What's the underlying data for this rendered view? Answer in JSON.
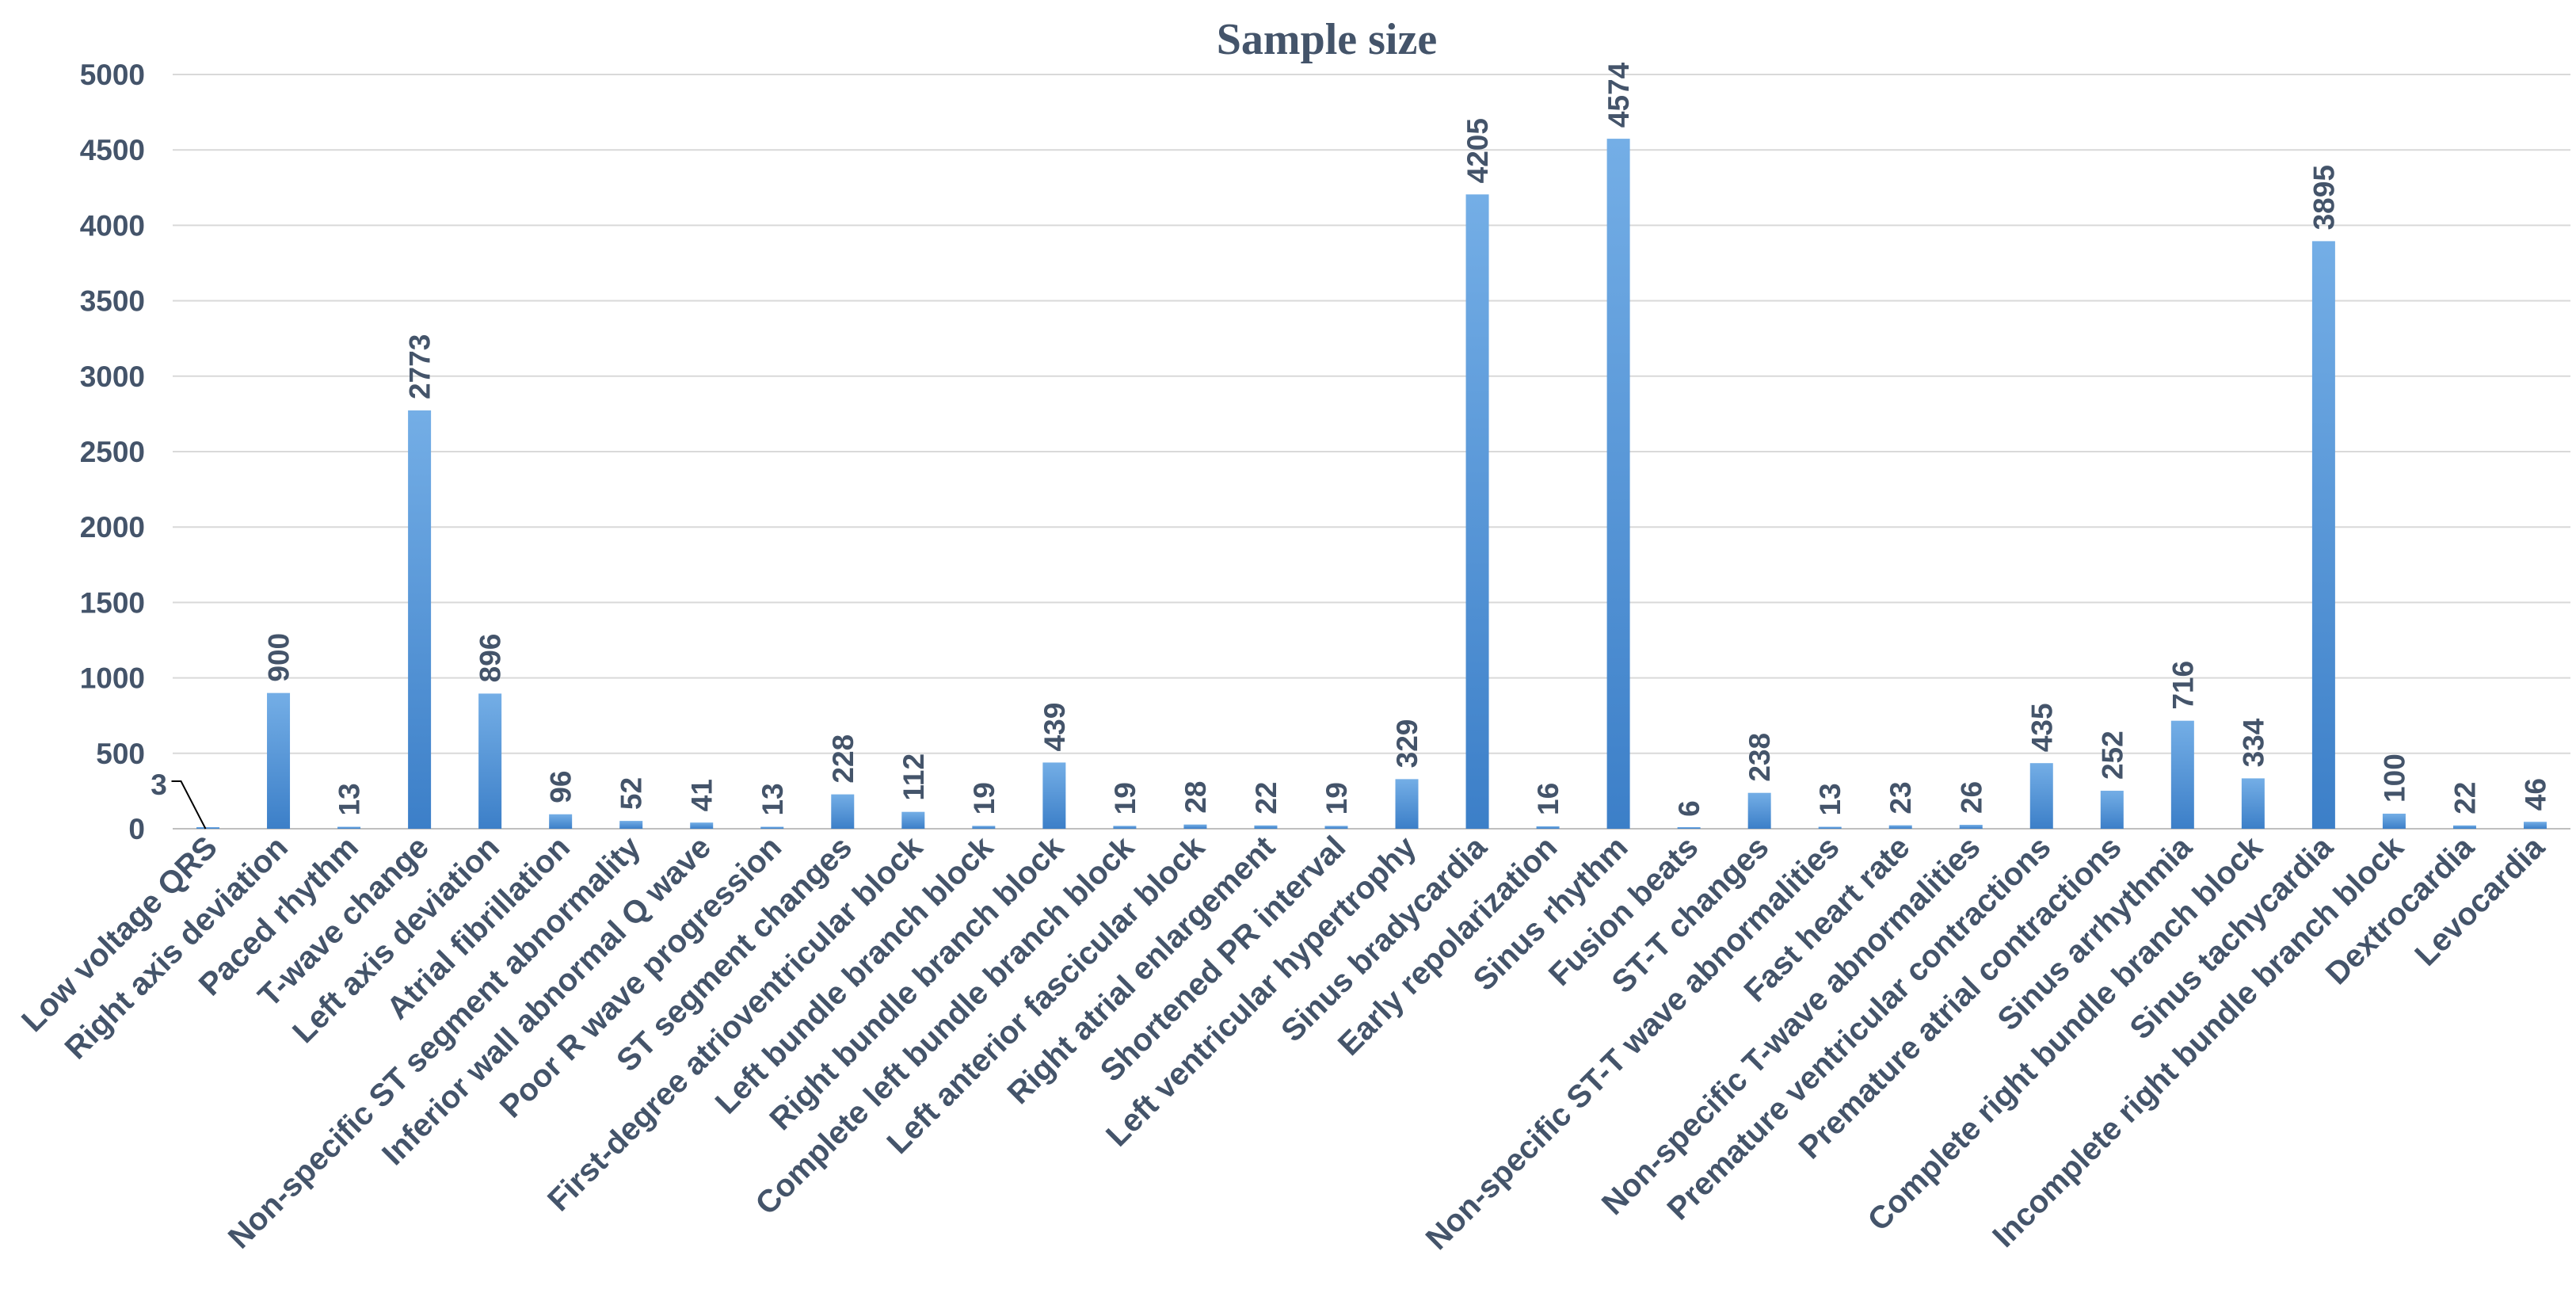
{
  "chart_data": {
    "type": "bar",
    "title": "Sample size",
    "xlabel": "",
    "ylabel": "",
    "ylim": [
      0,
      5000
    ],
    "yticks": [
      0,
      500,
      1000,
      1500,
      2000,
      2500,
      3000,
      3500,
      4000,
      4500,
      5000
    ],
    "grid": true,
    "legend": "none",
    "bar_color": "#4a8fd6",
    "categories": [
      "Low voltage QRS",
      "Right axis deviation",
      "Paced rhythm",
      "T-wave change",
      "Left axis deviation",
      "Atrial fibrillation",
      "Non-specific ST segment abnormality",
      "Inferior wall abnormal Q wave",
      "Poor R wave progression",
      "ST segment changes",
      "First-degree atrioventricular block",
      "Left bundle branch block",
      "Right bundle branch block",
      "Complete left bundle branch block",
      "Left anterior fascicular block",
      "Right atrial enlargement",
      "Shortened PR interval",
      "Left ventricular hypertrophy",
      "Sinus bradycardia",
      "Early repolarization",
      "Sinus rhythm",
      "Fusion beats",
      "ST-T changes",
      "Non-specific ST-T wave abnormalities",
      "Fast heart rate",
      "Non-specific T-wave abnormalities",
      "Premature ventricular contractions",
      "Premature atrial contractions",
      "Sinus arrhythmia",
      "Complete right bundle branch block",
      "Sinus tachycardia",
      "Incomplete right bundle branch block",
      "Dextrocardia",
      "Levocardia"
    ],
    "values": [
      3,
      900,
      13,
      2773,
      896,
      96,
      52,
      41,
      13,
      228,
      112,
      19,
      439,
      19,
      28,
      22,
      19,
      329,
      4205,
      16,
      4574,
      6,
      238,
      13,
      23,
      26,
      435,
      252,
      716,
      334,
      3895,
      100,
      22,
      46
    ],
    "data_labels": [
      "3",
      "900",
      "13",
      "2773",
      "896",
      "96",
      "52",
      "41",
      "13",
      "228",
      "112",
      "19",
      "439",
      "19",
      "28",
      "22",
      "19",
      "329",
      "4205",
      "16",
      "4574",
      "6",
      "238",
      "13",
      "23",
      "26",
      "435",
      "252",
      "716",
      "334",
      "3895",
      "100",
      "22",
      "46"
    ]
  }
}
